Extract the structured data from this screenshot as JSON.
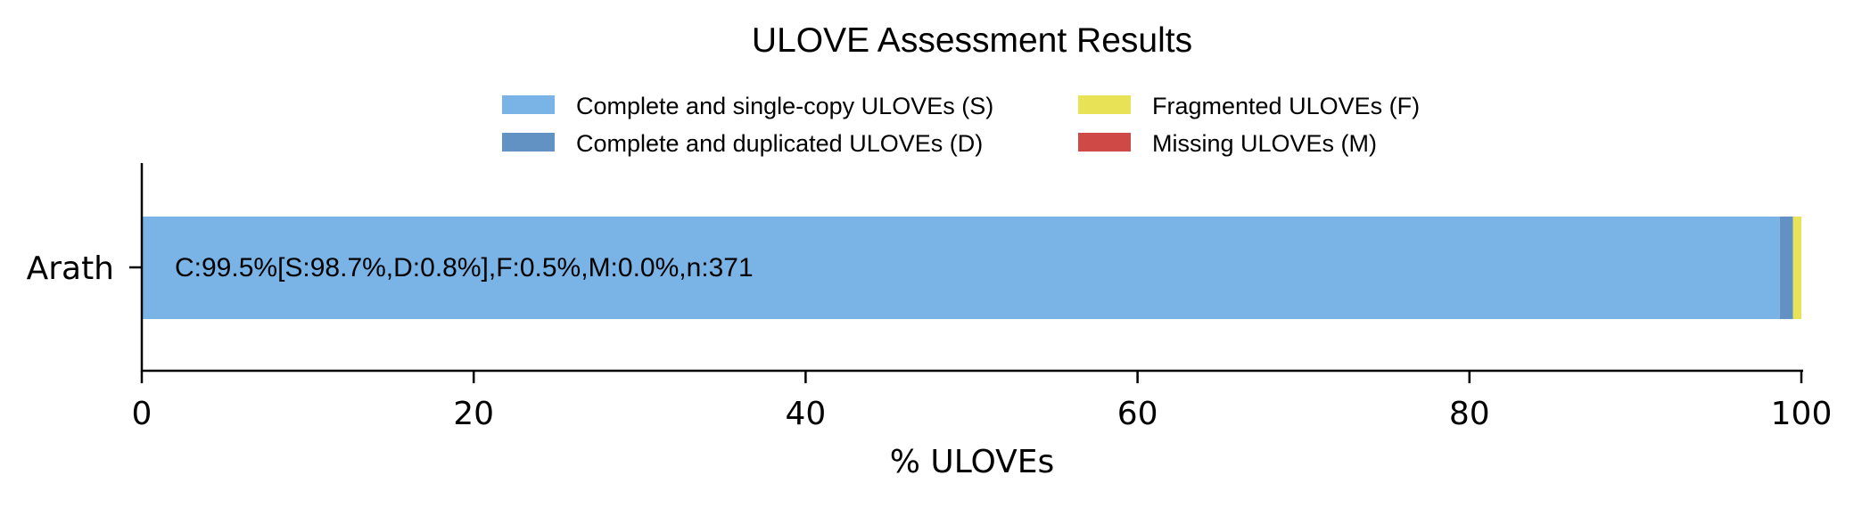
{
  "chart_data": {
    "type": "bar",
    "orientation": "horizontal",
    "stacked": true,
    "title": "ULOVE Assessment Results",
    "xlabel": "% ULOVEs",
    "ylabel": "",
    "xlim": [
      0,
      100
    ],
    "x_ticks": [
      "0",
      "20",
      "40",
      "60",
      "80",
      "100"
    ],
    "categories": [
      "Arath"
    ],
    "series": [
      {
        "name": "Complete and single-copy ULOVEs (S)",
        "color": "#7ab3e5",
        "values": [
          98.7
        ]
      },
      {
        "name": "Complete and duplicated ULOVEs (D)",
        "color": "#6292c4",
        "values": [
          0.8
        ]
      },
      {
        "name": "Fragmented ULOVEs (F)",
        "color": "#e8e256",
        "values": [
          0.5
        ]
      },
      {
        "name": "Missing ULOVEs (M)",
        "color": "#cf4a46",
        "values": [
          0.0
        ]
      }
    ],
    "bar_labels": [
      "C:99.5%[S:98.7%,D:0.8%],F:0.5%,M:0.0%,n:371"
    ],
    "legend_position": "top-center",
    "grid": false
  }
}
